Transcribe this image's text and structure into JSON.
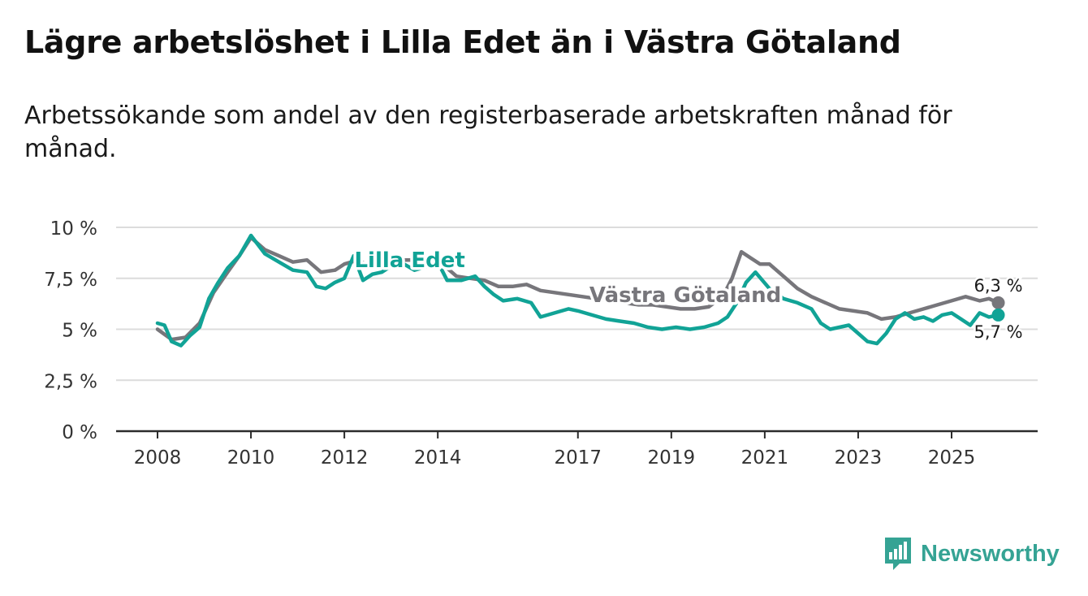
{
  "title": "Lägre arbetslöshet i Lilla Edet än i Västra Götaland",
  "subtitle": "Arbetssökande som andel av den registerbaserade arbetskraften månad för månad.",
  "brand": {
    "name": "Newsworthy",
    "icon": "bar-chart-bubble-icon"
  },
  "colors": {
    "lilla_edet": "#11a396",
    "vastra_gotaland": "#77767b",
    "grid": "#dcdcdc",
    "brand": "#35a394"
  },
  "chart_data": {
    "type": "line",
    "title": "Lägre arbetslöshet i Lilla Edet än i Västra Götaland",
    "xlabel": "",
    "ylabel": "",
    "ylim": [
      0,
      10
    ],
    "y_ticks": [
      0,
      2.5,
      5,
      7.5,
      10
    ],
    "y_tick_labels": [
      "0 %",
      "2,5 %",
      "5 %",
      "7,5 %",
      "10 %"
    ],
    "x_ticks": [
      2008,
      2010,
      2012,
      2014,
      2017,
      2019,
      2021,
      2023,
      2025
    ],
    "x_tick_labels": [
      "2008",
      "2010",
      "2012",
      "2014",
      "2017",
      "2019",
      "2021",
      "2023",
      "2025"
    ],
    "xlim": [
      2007.2,
      2026.8
    ],
    "series": [
      {
        "name": "Västra Götaland",
        "color": "#77767b",
        "label": "Västra Götaland",
        "end_label": "6,3 %",
        "x": [
          2008.0,
          2008.3,
          2008.6,
          2008.9,
          2009.2,
          2009.5,
          2009.75,
          2010.0,
          2010.3,
          2010.6,
          2010.9,
          2011.2,
          2011.5,
          2011.8,
          2012.0,
          2012.3,
          2012.6,
          2012.9,
          2013.2,
          2013.5,
          2013.8,
          2014.1,
          2014.4,
          2014.7,
          2015.0,
          2015.3,
          2015.6,
          2015.9,
          2016.2,
          2016.5,
          2016.8,
          2017.1,
          2017.4,
          2017.7,
          2018.0,
          2018.3,
          2018.6,
          2018.9,
          2019.2,
          2019.5,
          2019.8,
          2020.1,
          2020.3,
          2020.5,
          2020.7,
          2020.9,
          2021.1,
          2021.4,
          2021.7,
          2022.0,
          2022.3,
          2022.6,
          2022.9,
          2023.2,
          2023.5,
          2023.8,
          2024.1,
          2024.4,
          2024.7,
          2025.0,
          2025.3,
          2025.6,
          2025.8,
          2026.0
        ],
        "values": [
          5.0,
          4.5,
          4.6,
          5.3,
          6.8,
          7.8,
          8.6,
          9.5,
          8.9,
          8.6,
          8.3,
          8.4,
          7.8,
          7.9,
          8.2,
          8.4,
          8.0,
          8.3,
          8.4,
          8.4,
          8.3,
          8.2,
          7.6,
          7.5,
          7.4,
          7.1,
          7.1,
          7.2,
          6.9,
          6.8,
          6.7,
          6.6,
          6.5,
          6.4,
          6.3,
          6.2,
          6.2,
          6.1,
          6.0,
          6.0,
          6.1,
          6.6,
          7.5,
          8.8,
          8.5,
          8.2,
          8.2,
          7.6,
          7.0,
          6.6,
          6.3,
          6.0,
          5.9,
          5.8,
          5.5,
          5.6,
          5.8,
          6.0,
          6.2,
          6.4,
          6.6,
          6.4,
          6.5,
          6.3
        ]
      },
      {
        "name": "Lilla Edet",
        "color": "#11a396",
        "label": "Lilla Edet",
        "end_label": "5,7 %",
        "x": [
          2008.0,
          2008.15,
          2008.3,
          2008.5,
          2008.7,
          2008.9,
          2009.1,
          2009.3,
          2009.5,
          2009.75,
          2010.0,
          2010.3,
          2010.6,
          2010.9,
          2011.2,
          2011.4,
          2011.6,
          2011.8,
          2012.0,
          2012.2,
          2012.4,
          2012.6,
          2012.8,
          2013.0,
          2013.2,
          2013.5,
          2013.8,
          2014.0,
          2014.2,
          2014.5,
          2014.8,
          2015.0,
          2015.2,
          2015.4,
          2015.7,
          2016.0,
          2016.2,
          2016.5,
          2016.8,
          2017.0,
          2017.3,
          2017.6,
          2017.9,
          2018.2,
          2018.5,
          2018.8,
          2019.1,
          2019.4,
          2019.7,
          2020.0,
          2020.2,
          2020.4,
          2020.6,
          2020.8,
          2021.1,
          2021.4,
          2021.7,
          2022.0,
          2022.2,
          2022.4,
          2022.6,
          2022.8,
          2023.0,
          2023.2,
          2023.4,
          2023.6,
          2023.8,
          2024.0,
          2024.2,
          2024.4,
          2024.6,
          2024.8,
          2025.0,
          2025.2,
          2025.4,
          2025.6,
          2025.8,
          2026.0
        ],
        "values": [
          5.3,
          5.2,
          4.4,
          4.2,
          4.7,
          5.1,
          6.5,
          7.3,
          8.0,
          8.6,
          9.6,
          8.7,
          8.3,
          7.9,
          7.8,
          7.1,
          7.0,
          7.3,
          7.5,
          8.6,
          7.4,
          7.7,
          7.8,
          8.1,
          8.3,
          7.9,
          8.1,
          8.3,
          7.4,
          7.4,
          7.6,
          7.1,
          6.7,
          6.4,
          6.5,
          6.3,
          5.6,
          5.8,
          6.0,
          5.9,
          5.7,
          5.5,
          5.4,
          5.3,
          5.1,
          5.0,
          5.1,
          5.0,
          5.1,
          5.3,
          5.6,
          6.3,
          7.3,
          7.8,
          7.0,
          6.5,
          6.3,
          6.0,
          5.3,
          5.0,
          5.1,
          5.2,
          4.8,
          4.4,
          4.3,
          4.8,
          5.5,
          5.8,
          5.5,
          5.6,
          5.4,
          5.7,
          5.8,
          5.5,
          5.2,
          5.8,
          5.6,
          5.7
        ]
      }
    ]
  }
}
